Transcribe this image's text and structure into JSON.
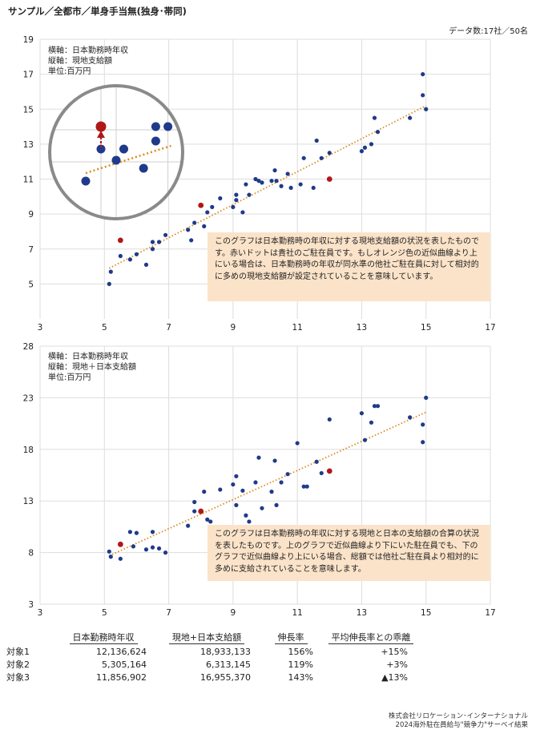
{
  "page": {
    "title": "サンプル／全都市／単身手当無(独身･帯同)",
    "count": "データ数:17社／50名",
    "credit_line1": "株式会社リロケーション･インターナショナル",
    "credit_line2": "2024海外駐在員給与\"競争力\"サーベイ結果"
  },
  "colors": {
    "blue_dot": "#1f3a8a",
    "red_dot": "#b01818",
    "trendline": "#d98a1c",
    "note_bg": "#fbe3c9",
    "grid": "#dddddd"
  },
  "chart_data": [
    {
      "type": "scatter",
      "legend": {
        "x_label": "横軸：日本勤務時年収",
        "y_label": "縦軸：現地支給額",
        "unit": "単位:百万円"
      },
      "x_ticks": [
        3,
        5,
        7,
        9,
        11,
        13,
        15,
        17
      ],
      "y_ticks": [
        5,
        7,
        9,
        11,
        13,
        15,
        17,
        19
      ],
      "xlim": [
        3,
        17
      ],
      "ylim": [
        3,
        19
      ],
      "grid": "horizontal and vertical",
      "note": "このグラフは日本勤務時の年収に対する現地支給額の状況を表したものです。赤いドットは貴社のご駐在員です。もしオレンジ色の近似曲線より上にいる場合は、日本勤務時の年収が同水準の他社ご駐在員に対して相対的に多めの現地支給額が設定されていることを意味しています。",
      "trend": [
        [
          5.15,
          5.9
        ],
        [
          15.0,
          15.2
        ]
      ],
      "points": [
        [
          5.15,
          5.0
        ],
        [
          5.2,
          5.7
        ],
        [
          5.5,
          6.6
        ],
        [
          5.8,
          6.4
        ],
        [
          6.0,
          6.7
        ],
        [
          6.3,
          6.1
        ],
        [
          6.5,
          7.0
        ],
        [
          6.5,
          7.4
        ],
        [
          6.7,
          7.4
        ],
        [
          6.9,
          7.8
        ],
        [
          7.6,
          8.1
        ],
        [
          7.7,
          7.5
        ],
        [
          7.8,
          8.5
        ],
        [
          8.1,
          8.3
        ],
        [
          8.2,
          9.1
        ],
        [
          8.35,
          9.4
        ],
        [
          8.6,
          9.9
        ],
        [
          9.0,
          9.4
        ],
        [
          9.1,
          9.8
        ],
        [
          9.1,
          10.1
        ],
        [
          9.3,
          9.1
        ],
        [
          9.4,
          10.7
        ],
        [
          9.5,
          10.1
        ],
        [
          9.7,
          11.0
        ],
        [
          9.8,
          10.9
        ],
        [
          9.9,
          10.8
        ],
        [
          10.2,
          10.9
        ],
        [
          10.3,
          11.5
        ],
        [
          10.35,
          10.9
        ],
        [
          10.5,
          10.6
        ],
        [
          10.7,
          11.3
        ],
        [
          10.8,
          10.5
        ],
        [
          11.1,
          10.7
        ],
        [
          11.2,
          12.2
        ],
        [
          11.5,
          10.5
        ],
        [
          11.6,
          13.2
        ],
        [
          11.75,
          12.2
        ],
        [
          12.0,
          12.5
        ],
        [
          13.0,
          12.6
        ],
        [
          13.1,
          12.8
        ],
        [
          13.3,
          13.0
        ],
        [
          13.4,
          14.5
        ],
        [
          13.5,
          13.7
        ],
        [
          14.5,
          14.5
        ],
        [
          14.9,
          15.8
        ],
        [
          15.0,
          15.0
        ],
        [
          14.9,
          17.0
        ]
      ],
      "highlight_points": [
        [
          5.5,
          7.5
        ],
        [
          8.0,
          9.5
        ],
        [
          12.0,
          11.0
        ]
      ],
      "inset": {
        "points": [
          [
            4.6,
            9.8
          ],
          [
            5.1,
            11.8
          ],
          [
            5.6,
            11.1
          ],
          [
            5.85,
            11.8
          ],
          [
            6.5,
            10.6
          ],
          [
            6.9,
            13.2
          ],
          [
            6.9,
            12.3
          ],
          [
            7.3,
            13.2
          ]
        ],
        "highlight_point": [
          5.1,
          13.2
        ],
        "arrow_from": [
          5.1,
          11.9
        ],
        "arrow_to": [
          5.1,
          12.9
        ],
        "trend": [
          [
            4.6,
            10.3
          ],
          [
            7.4,
            12.0
          ]
        ]
      }
    },
    {
      "type": "scatter",
      "legend": {
        "x_label": "横軸：日本勤務時年収",
        "y_label": "縦軸：現地＋日本支給額",
        "unit": "単位:百万円"
      },
      "x_ticks": [
        3,
        5,
        7,
        9,
        11,
        13,
        15,
        17
      ],
      "y_ticks": [
        3,
        8,
        13,
        18,
        23,
        28
      ],
      "xlim": [
        3,
        17
      ],
      "ylim": [
        3,
        28
      ],
      "grid": "horizontal and vertical",
      "note": "このグラフは日本勤務時の年収に対する現地と日本の支給額の合算の状況を表したものです。上のグラフで近似曲線より下にいた駐在員でも、下のグラフで近似曲線より上にいる場合、総額では他社ご駐在員より相対的に多めに支給されていることを意味します。",
      "trend": [
        [
          5.15,
          7.7
        ],
        [
          15.0,
          21.6
        ]
      ],
      "points": [
        [
          5.15,
          8.1
        ],
        [
          5.2,
          7.6
        ],
        [
          5.5,
          7.4
        ],
        [
          5.8,
          10.0
        ],
        [
          5.9,
          8.6
        ],
        [
          6.0,
          9.9
        ],
        [
          6.3,
          8.3
        ],
        [
          6.5,
          8.5
        ],
        [
          6.5,
          10.0
        ],
        [
          6.7,
          8.4
        ],
        [
          6.9,
          8.0
        ],
        [
          7.6,
          10.6
        ],
        [
          7.8,
          12.0
        ],
        [
          7.8,
          12.9
        ],
        [
          8.1,
          13.9
        ],
        [
          8.2,
          11.2
        ],
        [
          8.3,
          11.0
        ],
        [
          8.6,
          14.1
        ],
        [
          9.0,
          14.6
        ],
        [
          9.1,
          15.4
        ],
        [
          9.1,
          12.6
        ],
        [
          9.3,
          14.0
        ],
        [
          9.4,
          11.6
        ],
        [
          9.5,
          11.0
        ],
        [
          9.7,
          14.8
        ],
        [
          9.8,
          17.2
        ],
        [
          9.9,
          12.3
        ],
        [
          10.2,
          13.9
        ],
        [
          10.3,
          16.9
        ],
        [
          10.35,
          12.6
        ],
        [
          10.5,
          14.8
        ],
        [
          10.7,
          15.6
        ],
        [
          11.0,
          18.6
        ],
        [
          11.2,
          14.4
        ],
        [
          11.3,
          14.4
        ],
        [
          11.6,
          16.8
        ],
        [
          11.75,
          15.7
        ],
        [
          12.0,
          20.9
        ],
        [
          13.0,
          21.5
        ],
        [
          13.1,
          18.9
        ],
        [
          13.3,
          20.6
        ],
        [
          13.4,
          22.2
        ],
        [
          13.5,
          22.2
        ],
        [
          14.5,
          21.1
        ],
        [
          14.9,
          20.4
        ],
        [
          14.9,
          18.7
        ],
        [
          15.0,
          23.0
        ]
      ],
      "highlight_points": [
        [
          5.5,
          8.8
        ],
        [
          8.0,
          12.0
        ],
        [
          12.0,
          15.9
        ]
      ]
    }
  ],
  "table": {
    "headers": [
      "日本勤務時年収",
      "現地+日本支給額",
      "伸長率",
      "平均伸長率との乖離"
    ],
    "rows": [
      {
        "label": "対象1",
        "cells": [
          "12,136,624",
          "18,933,133",
          "156%",
          "+15%"
        ]
      },
      {
        "label": "対象2",
        "cells": [
          "5,305,164",
          "6,313,145",
          "119%",
          "+3%"
        ]
      },
      {
        "label": "対象3",
        "cells": [
          "11,856,902",
          "16,955,370",
          "143%",
          "▲13%"
        ]
      }
    ]
  }
}
